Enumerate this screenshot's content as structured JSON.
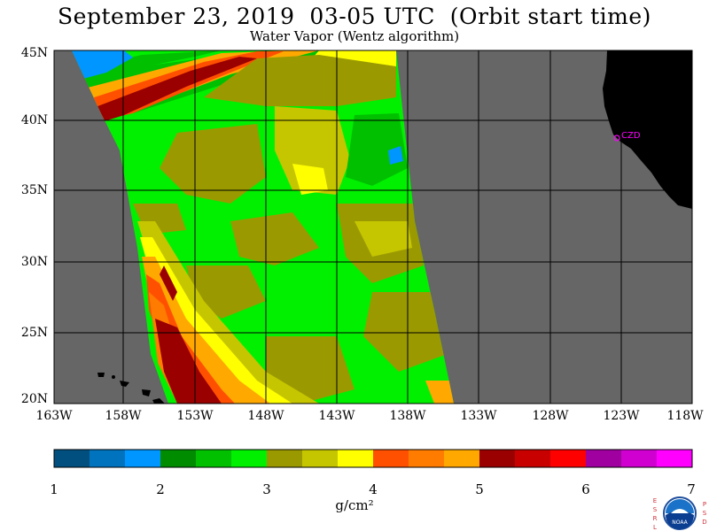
{
  "title": "September 23, 2019  03-05 UTC  (Orbit start time)",
  "subtitle": "Water Vapor (Wentz algorithm)",
  "map": {
    "no_data_color": "#666666",
    "land_color": "#000000",
    "grid_color": "#000000",
    "station_label": "CZD",
    "station_color": "#ff00ff",
    "lat_labels": [
      "45N",
      "40N",
      "35N",
      "30N",
      "25N",
      "20N"
    ],
    "lon_labels": [
      "163W",
      "158W",
      "153W",
      "148W",
      "143W",
      "138W",
      "133W",
      "128W",
      "123W",
      "118W"
    ]
  },
  "colorbar": {
    "colors": [
      "#004f7f",
      "#0073bf",
      "#0096ff",
      "#008c00",
      "#00c000",
      "#00f000",
      "#9a9a00",
      "#c6c600",
      "#ffff00",
      "#ff5000",
      "#ff7c00",
      "#ffa800",
      "#9a0000",
      "#c80000",
      "#ff0000",
      "#a000a0",
      "#d000d0",
      "#ff00ff"
    ],
    "tick_labels": [
      "1",
      "2",
      "3",
      "4",
      "5",
      "6",
      "7"
    ],
    "units": "g/cm²"
  },
  "logo": {
    "left_letters": [
      "E",
      "S",
      "R",
      "L"
    ],
    "right_letters": [
      "P",
      "S",
      "D"
    ],
    "badge_text": "NOAA"
  }
}
